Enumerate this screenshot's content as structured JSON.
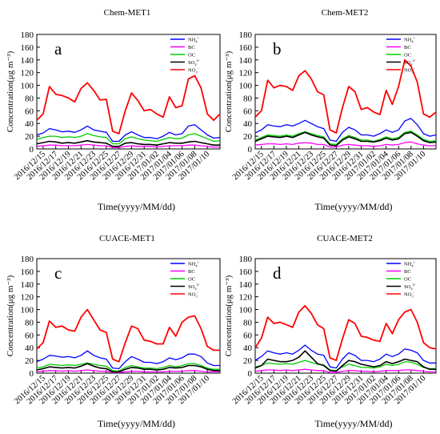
{
  "figure": {
    "date_labels": [
      "2016/12/15",
      "2016/12/17",
      "2016/12/19",
      "2016/12/21",
      "2016/12/23",
      "2016/12/25",
      "2016/12/27",
      "2016/12/29",
      "2016/12/31",
      "2017/01/02",
      "2017/01/04",
      "2017/01/06",
      "2017/01/08",
      "2017/01/10"
    ]
  },
  "chart_data": [
    {
      "type": "line",
      "title": "Chem-MET1",
      "panel_letter": "a",
      "xlabel": "Time(yyyy/MM/dd)",
      "ylabel": "Concentration(μg m⁻³)",
      "ylim": [
        0,
        180
      ],
      "yticks": [
        0,
        20,
        40,
        60,
        80,
        100,
        120,
        140,
        160,
        180
      ],
      "legend_position": "top-right",
      "x_start": "2016-12-14",
      "x_end": "2017-01-12",
      "x": [
        "2016-12-14",
        "2016-12-15",
        "2016-12-16",
        "2016-12-17",
        "2016-12-18",
        "2016-12-19",
        "2016-12-20",
        "2016-12-21",
        "2016-12-22",
        "2016-12-23",
        "2016-12-24",
        "2016-12-25",
        "2016-12-26",
        "2016-12-27",
        "2016-12-28",
        "2016-12-29",
        "2016-12-30",
        "2016-12-31",
        "2017-01-01",
        "2017-01-02",
        "2017-01-03",
        "2017-01-04",
        "2017-01-05",
        "2017-01-06",
        "2017-01-07",
        "2017-01-08",
        "2017-01-09",
        "2017-01-10",
        "2017-01-11",
        "2017-01-12"
      ],
      "series": [
        {
          "name": "NH4+",
          "color": "#0000ff",
          "values": [
            22,
            25,
            32,
            30,
            27,
            28,
            26,
            30,
            36,
            30,
            28,
            26,
            12,
            12,
            22,
            27,
            22,
            18,
            18,
            16,
            20,
            26,
            22,
            24,
            36,
            38,
            30,
            22,
            17,
            18
          ]
        },
        {
          "name": "BC",
          "color": "#ff00ff",
          "values": [
            4,
            5,
            6,
            6,
            5,
            5,
            5,
            6,
            7,
            6,
            5,
            5,
            2,
            2,
            4,
            5,
            4,
            4,
            4,
            3,
            4,
            5,
            5,
            5,
            6,
            6,
            5,
            4,
            3,
            3
          ]
        },
        {
          "name": "OC",
          "color": "#00cc00",
          "values": [
            15,
            18,
            20,
            20,
            18,
            19,
            18,
            20,
            24,
            21,
            19,
            18,
            8,
            8,
            16,
            19,
            16,
            14,
            13,
            12,
            15,
            18,
            16,
            17,
            22,
            24,
            20,
            16,
            12,
            13
          ]
        },
        {
          "name": "SO4 2-",
          "color": "#000000",
          "values": [
            8,
            10,
            12,
            11,
            9,
            10,
            9,
            11,
            13,
            11,
            10,
            9,
            4,
            4,
            9,
            10,
            8,
            7,
            7,
            6,
            8,
            10,
            9,
            9,
            11,
            12,
            10,
            8,
            6,
            6
          ]
        },
        {
          "name": "NO3-",
          "color": "#ff0000",
          "values": [
            45,
            55,
            98,
            86,
            84,
            80,
            74,
            95,
            104,
            92,
            77,
            78,
            28,
            24,
            60,
            88,
            76,
            60,
            62,
            55,
            50,
            82,
            65,
            68,
            110,
            115,
            96,
            55,
            45,
            55
          ]
        }
      ],
      "legend_labels": [
        {
          "base": "NH",
          "sub": "4",
          "sup": "+"
        },
        {
          "base": "BC",
          "sub": "",
          "sup": ""
        },
        {
          "base": "OC",
          "sub": "",
          "sup": ""
        },
        {
          "base": "SO",
          "sub": "4",
          "sup": "2-"
        },
        {
          "base": "NO",
          "sub": "3",
          "sup": "-"
        }
      ]
    },
    {
      "type": "line",
      "title": "Chem-MET2",
      "panel_letter": "b",
      "xlabel": "Time(yyyy/MM/dd)",
      "ylabel": "Concentration(μg m⁻³)",
      "ylim": [
        0,
        180
      ],
      "yticks": [
        0,
        20,
        40,
        60,
        80,
        100,
        120,
        140,
        160,
        180
      ],
      "legend_position": "top-right",
      "x_start": "2016-12-14",
      "x_end": "2017-01-12",
      "x": [
        "2016-12-14",
        "2016-12-15",
        "2016-12-16",
        "2016-12-17",
        "2016-12-18",
        "2016-12-19",
        "2016-12-20",
        "2016-12-21",
        "2016-12-22",
        "2016-12-23",
        "2016-12-24",
        "2016-12-25",
        "2016-12-26",
        "2016-12-27",
        "2016-12-28",
        "2016-12-29",
        "2016-12-30",
        "2016-12-31",
        "2017-01-01",
        "2017-01-02",
        "2017-01-03",
        "2017-01-04",
        "2017-01-05",
        "2017-01-06",
        "2017-01-07",
        "2017-01-08",
        "2017-01-09",
        "2017-01-10",
        "2017-01-11",
        "2017-01-12"
      ],
      "series": [
        {
          "name": "NH4+",
          "color": "#0000ff",
          "values": [
            25,
            30,
            38,
            36,
            35,
            38,
            36,
            40,
            45,
            40,
            35,
            32,
            14,
            12,
            26,
            34,
            30,
            22,
            22,
            20,
            24,
            30,
            26,
            30,
            44,
            48,
            38,
            24,
            20,
            22
          ]
        },
        {
          "name": "BC",
          "color": "#ff00ff",
          "values": [
            6,
            7,
            8,
            8,
            7,
            8,
            7,
            9,
            10,
            9,
            7,
            7,
            3,
            3,
            6,
            7,
            6,
            5,
            5,
            4,
            5,
            7,
            6,
            7,
            10,
            11,
            8,
            6,
            5,
            5
          ]
        },
        {
          "name": "OC",
          "color": "#00cc00",
          "values": [
            14,
            18,
            22,
            21,
            20,
            22,
            20,
            24,
            27,
            24,
            21,
            19,
            8,
            7,
            16,
            21,
            18,
            14,
            14,
            12,
            15,
            19,
            16,
            18,
            26,
            28,
            22,
            15,
            12,
            13
          ]
        },
        {
          "name": "SO4 2-",
          "color": "#000000",
          "values": [
            12,
            16,
            20,
            19,
            18,
            20,
            18,
            22,
            26,
            22,
            19,
            17,
            6,
            5,
            14,
            19,
            16,
            12,
            12,
            11,
            13,
            17,
            14,
            16,
            24,
            26,
            20,
            13,
            10,
            11
          ]
        },
        {
          "name": "NO3-",
          "color": "#ff0000",
          "values": [
            50,
            60,
            108,
            96,
            100,
            98,
            92,
            115,
            123,
            110,
            90,
            85,
            30,
            25,
            65,
            98,
            90,
            62,
            65,
            58,
            54,
            92,
            70,
            98,
            140,
            130,
            105,
            55,
            50,
            58
          ]
        }
      ],
      "legend_labels": [
        {
          "base": "NH",
          "sub": "4",
          "sup": "+"
        },
        {
          "base": "BC",
          "sub": "",
          "sup": ""
        },
        {
          "base": "OC",
          "sub": "",
          "sup": ""
        },
        {
          "base": "SO",
          "sub": "4",
          "sup": "2-"
        },
        {
          "base": "NO",
          "sub": "3",
          "sup": "-"
        }
      ]
    },
    {
      "type": "line",
      "title": "CUACE-MET1",
      "panel_letter": "c",
      "xlabel": "Time(yyyy/MM/dd)",
      "ylabel": "Concentration(μg m⁻³)",
      "ylim": [
        0,
        180
      ],
      "yticks": [
        0,
        20,
        40,
        60,
        80,
        100,
        120,
        140,
        160,
        180
      ],
      "legend_position": "top-right",
      "x_start": "2016-12-14",
      "x_end": "2017-01-12",
      "x": [
        "2016-12-14",
        "2016-12-15",
        "2016-12-16",
        "2016-12-17",
        "2016-12-18",
        "2016-12-19",
        "2016-12-20",
        "2016-12-21",
        "2016-12-22",
        "2016-12-23",
        "2016-12-24",
        "2016-12-25",
        "2016-12-26",
        "2016-12-27",
        "2016-12-28",
        "2016-12-29",
        "2016-12-30",
        "2016-12-31",
        "2017-01-01",
        "2017-01-02",
        "2017-01-03",
        "2017-01-04",
        "2017-01-05",
        "2017-01-06",
        "2017-01-07",
        "2017-01-08",
        "2017-01-09",
        "2017-01-10",
        "2017-01-11",
        "2017-01-12"
      ],
      "series": [
        {
          "name": "NH4+",
          "color": "#0000ff",
          "values": [
            18,
            22,
            28,
            27,
            25,
            26,
            24,
            28,
            35,
            28,
            24,
            22,
            8,
            7,
            18,
            26,
            22,
            17,
            17,
            15,
            18,
            24,
            21,
            24,
            30,
            30,
            26,
            16,
            12,
            12
          ]
        },
        {
          "name": "BC",
          "color": "#ff00ff",
          "values": [
            2,
            3,
            4,
            4,
            3,
            4,
            3,
            4,
            5,
            4,
            3,
            3,
            1,
            1,
            2,
            3,
            3,
            2,
            2,
            2,
            2,
            3,
            3,
            3,
            4,
            4,
            3,
            2,
            2,
            2
          ]
        },
        {
          "name": "OC",
          "color": "#00cc00",
          "values": [
            8,
            10,
            14,
            13,
            12,
            13,
            12,
            14,
            16,
            14,
            12,
            11,
            4,
            3,
            9,
            12,
            10,
            8,
            8,
            7,
            9,
            12,
            10,
            12,
            15,
            15,
            12,
            8,
            6,
            6
          ]
        },
        {
          "name": "SO4 2-",
          "color": "#000000",
          "values": [
            5,
            7,
            10,
            9,
            8,
            9,
            8,
            11,
            15,
            11,
            8,
            7,
            2,
            2,
            6,
            9,
            8,
            6,
            6,
            5,
            6,
            9,
            8,
            9,
            12,
            12,
            10,
            6,
            4,
            4
          ]
        },
        {
          "name": "NO3-",
          "color": "#ff0000",
          "values": [
            38,
            48,
            82,
            72,
            74,
            68,
            66,
            88,
            100,
            84,
            68,
            64,
            22,
            18,
            48,
            74,
            70,
            52,
            50,
            46,
            46,
            72,
            58,
            80,
            88,
            90,
            70,
            42,
            36,
            36
          ]
        }
      ],
      "legend_labels": [
        {
          "base": "NH",
          "sub": "4",
          "sup": "+"
        },
        {
          "base": "BC",
          "sub": "",
          "sup": ""
        },
        {
          "base": "OC",
          "sub": "",
          "sup": ""
        },
        {
          "base": "SO",
          "sub": "4",
          "sup": "2-"
        },
        {
          "base": "NO",
          "sub": "3",
          "sup": "-"
        }
      ]
    },
    {
      "type": "line",
      "title": "CUACE-MET2",
      "panel_letter": "d",
      "xlabel": "Time(yyyy/MM/dd)",
      "ylabel": "Concentration(μg m⁻³)",
      "ylim": [
        0,
        180
      ],
      "yticks": [
        0,
        20,
        40,
        60,
        80,
        100,
        120,
        140,
        160,
        180
      ],
      "legend_position": "top-right",
      "x_start": "2016-12-14",
      "x_end": "2017-01-12",
      "x": [
        "2016-12-14",
        "2016-12-15",
        "2016-12-16",
        "2016-12-17",
        "2016-12-18",
        "2016-12-19",
        "2016-12-20",
        "2016-12-21",
        "2016-12-22",
        "2016-12-23",
        "2016-12-24",
        "2016-12-25",
        "2016-12-26",
        "2016-12-27",
        "2016-12-28",
        "2016-12-29",
        "2016-12-30",
        "2016-12-31",
        "2017-01-01",
        "2017-01-02",
        "2017-01-03",
        "2017-01-04",
        "2017-01-05",
        "2017-01-06",
        "2017-01-07",
        "2017-01-08",
        "2017-01-09",
        "2017-01-10",
        "2017-01-11",
        "2017-01-12"
      ],
      "series": [
        {
          "name": "NH4+",
          "color": "#0000ff",
          "values": [
            20,
            26,
            35,
            32,
            30,
            32,
            30,
            36,
            44,
            36,
            30,
            28,
            10,
            8,
            22,
            32,
            28,
            20,
            20,
            18,
            22,
            30,
            26,
            30,
            38,
            36,
            32,
            20,
            16,
            16
          ]
        },
        {
          "name": "BC",
          "color": "#ff00ff",
          "values": [
            3,
            4,
            5,
            5,
            4,
            5,
            4,
            5,
            6,
            5,
            4,
            4,
            1,
            1,
            3,
            4,
            4,
            3,
            3,
            2,
            3,
            4,
            4,
            4,
            5,
            5,
            4,
            3,
            2,
            2
          ]
        },
        {
          "name": "OC",
          "color": "#00cc00",
          "values": [
            10,
            12,
            16,
            15,
            14,
            15,
            14,
            17,
            20,
            17,
            14,
            13,
            5,
            4,
            10,
            14,
            12,
            9,
            9,
            8,
            10,
            14,
            12,
            14,
            18,
            17,
            14,
            9,
            7,
            7
          ]
        },
        {
          "name": "SO4 2-",
          "color": "#000000",
          "values": [
            8,
            12,
            22,
            20,
            18,
            18,
            20,
            25,
            35,
            25,
            15,
            12,
            4,
            3,
            12,
            20,
            18,
            14,
            12,
            10,
            12,
            18,
            15,
            18,
            22,
            20,
            18,
            10,
            6,
            6
          ]
        },
        {
          "name": "NO3-",
          "color": "#ff0000",
          "values": [
            40,
            55,
            88,
            78,
            80,
            76,
            72,
            96,
            106,
            94,
            76,
            70,
            24,
            20,
            54,
            84,
            78,
            58,
            56,
            52,
            50,
            78,
            62,
            84,
            96,
            100,
            80,
            48,
            40,
            38
          ]
        }
      ],
      "legend_labels": [
        {
          "base": "NH",
          "sub": "4",
          "sup": "+"
        },
        {
          "base": "BC",
          "sub": "",
          "sup": ""
        },
        {
          "base": "OC",
          "sub": "",
          "sup": ""
        },
        {
          "base": "SO",
          "sub": "4",
          "sup": "2-"
        },
        {
          "base": "NO",
          "sub": "3",
          "sup": "-"
        }
      ]
    }
  ]
}
